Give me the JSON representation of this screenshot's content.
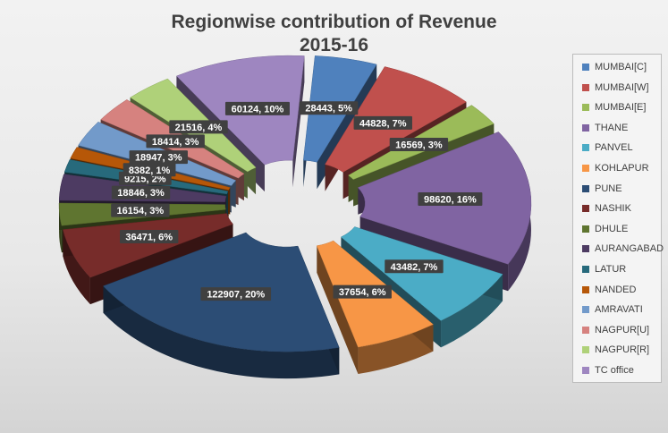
{
  "chart_data": {
    "type": "pie",
    "title": "Regionwise contribution of Revenue",
    "subtitle": "2015-16",
    "legend_position": "right",
    "slices": [
      {
        "name": "MUMBAI[C]",
        "value": 28443,
        "label": "28443, 5%",
        "color": "#4f81bd"
      },
      {
        "name": "MUMBAI[W]",
        "value": 44828,
        "label": "44828, 7%",
        "color": "#c0504d"
      },
      {
        "name": "MUMBAI[E]",
        "value": 16569,
        "label": "16569, 3%",
        "color": "#9bbb59"
      },
      {
        "name": "THANE",
        "value": 98620,
        "label": "98620, 16%",
        "color": "#8064a2"
      },
      {
        "name": "PANVEL",
        "value": 43482,
        "label": "43482, 7%",
        "color": "#4bacc6"
      },
      {
        "name": "KOHLAPUR",
        "value": 37654,
        "label": "37654, 6%",
        "color": "#f79646"
      },
      {
        "name": "PUNE",
        "value": 122907,
        "label": "122907, 20%",
        "color": "#2c4d75"
      },
      {
        "name": "NASHIK",
        "value": 36471,
        "label": "36471, 6%",
        "color": "#772c2a"
      },
      {
        "name": "DHULE",
        "value": 16154,
        "label": "16154, 3%",
        "color": "#5f7530"
      },
      {
        "name": "AURANGABAD",
        "value": 18846,
        "label": "18846, 3%",
        "color": "#4d3b62"
      },
      {
        "name": "LATUR",
        "value": 9215,
        "label": "9215, 2%",
        "color": "#276a7c"
      },
      {
        "name": "NANDED",
        "value": 8382,
        "label": "8382, 1%",
        "color": "#b65708"
      },
      {
        "name": "AMRAVATI",
        "value": 18947,
        "label": "18947, 3%",
        "color": "#729aca"
      },
      {
        "name": "NAGPUR[U]",
        "value": 18414,
        "label": "18414, 3%",
        "color": "#d6827f"
      },
      {
        "name": "NAGPUR[R]",
        "value": 21516,
        "label": "21516, 4%",
        "color": "#afd179"
      },
      {
        "name": "TC office",
        "value": 60124,
        "label": "60124, 10%",
        "color": "#9e86c0"
      }
    ]
  }
}
